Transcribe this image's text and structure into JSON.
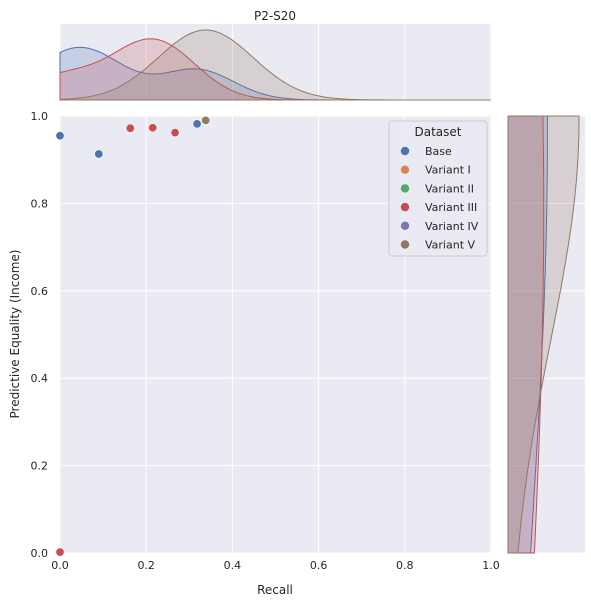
{
  "chart_data": {
    "type": "scatter",
    "title": "P2-S20",
    "xlabel": "Recall",
    "ylabel": "Predictive Equality (Income)",
    "xlim": [
      0.0,
      1.0
    ],
    "ylim": [
      0.0,
      1.0
    ],
    "xticks": [
      "0.0",
      "0.2",
      "0.4",
      "0.6",
      "0.8",
      "1.0"
    ],
    "yticks": [
      "0.0",
      "0.2",
      "0.4",
      "0.6",
      "0.8",
      "1.0"
    ],
    "grid": true,
    "legend": {
      "title": "Dataset",
      "position": "top-right"
    },
    "marginals": {
      "top": "kde of Recall",
      "right": "kde of Predictive Equality (Income)"
    },
    "series": [
      {
        "name": "Base",
        "color": "#4c72b0",
        "points": [
          [
            0.0,
            0.955
          ],
          [
            0.09,
            0.913
          ],
          [
            0.318,
            0.982
          ]
        ]
      },
      {
        "name": "Variant I",
        "color": "#dd8452",
        "points": []
      },
      {
        "name": "Variant II",
        "color": "#55a868",
        "points": []
      },
      {
        "name": "Variant III",
        "color": "#c44e52",
        "points": [
          [
            0.0,
            0.002
          ],
          [
            0.163,
            0.972
          ],
          [
            0.215,
            0.973
          ],
          [
            0.267,
            0.962
          ]
        ]
      },
      {
        "name": "Variant IV",
        "color": "#8172b3",
        "points": []
      },
      {
        "name": "Variant V",
        "color": "#937860",
        "points": [
          [
            0.338,
            0.99
          ]
        ]
      }
    ]
  }
}
